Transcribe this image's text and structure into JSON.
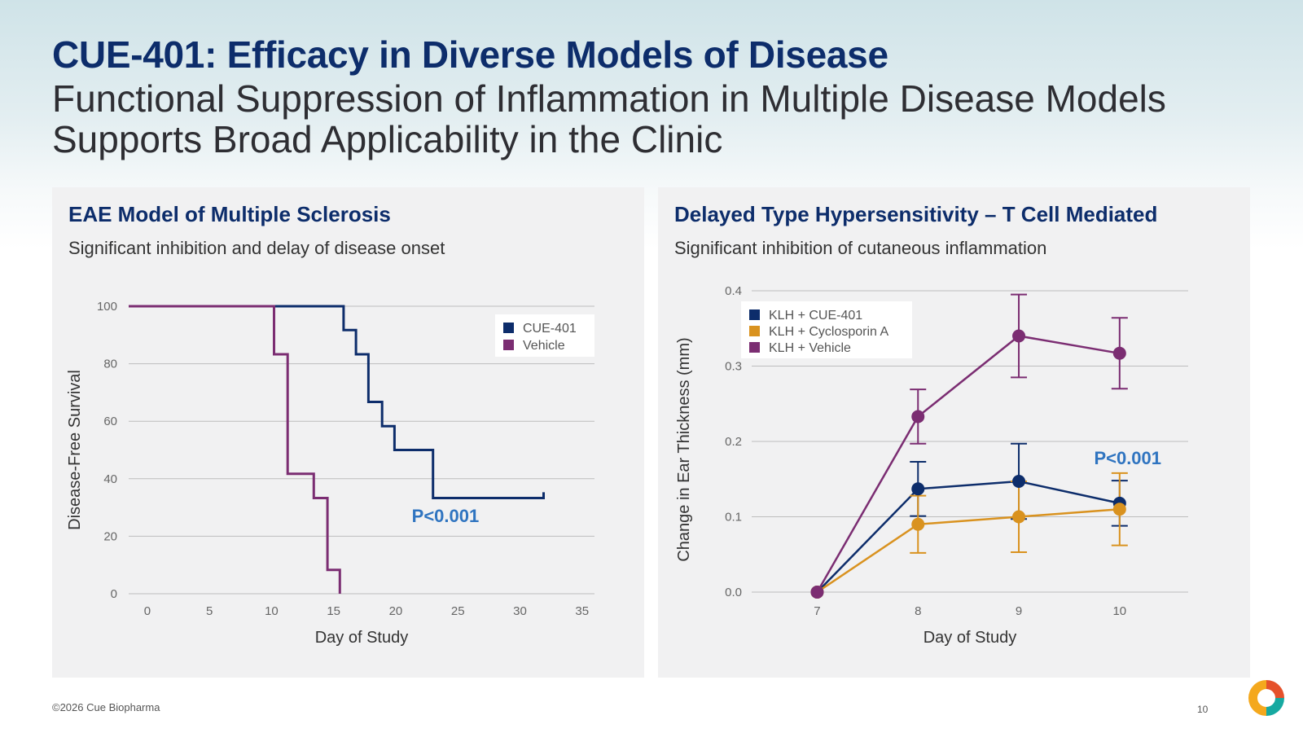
{
  "header": {
    "title": "CUE-401: Efficacy in Diverse Models of Disease",
    "subtitle": "Functional Suppression of Inflammation in Multiple Disease Models Supports Broad Applicability in the Clinic"
  },
  "footer": {
    "copyright": "©2026 Cue Biopharma",
    "page_number": "10"
  },
  "colors": {
    "title": "#0d2d6b",
    "cue401": "#0d2d6b",
    "vehicle": "#7b2d72",
    "cyclosporin": "#d9921f",
    "pvalue": "#2f74c0"
  },
  "panels": [
    {
      "title": "EAE Model of Multiple Sclerosis",
      "subtitle": "Significant inhibition and delay of disease onset"
    },
    {
      "title": "Delayed Type Hypersensitivity – T Cell Mediated",
      "subtitle": "Significant inhibition of cutaneous inflammation"
    }
  ],
  "chart_data": [
    {
      "type": "line",
      "step": true,
      "title": "EAE Model of Multiple Sclerosis",
      "xlabel": "Day of Study",
      "ylabel": "Disease-Free Survival",
      "xlim": [
        -1.5,
        36
      ],
      "ylim": [
        0,
        100
      ],
      "xticks": [
        0,
        5,
        10,
        15,
        20,
        25,
        30,
        35
      ],
      "xtick_labels": [
        "0",
        "5",
        "10",
        "15",
        "20",
        "25",
        "30",
        "35"
      ],
      "yticks": [
        0,
        20,
        40,
        60,
        80,
        100
      ],
      "ytick_labels": [
        "0",
        "20",
        "40",
        "60",
        "80",
        "100"
      ],
      "grid": true,
      "legend": "top-right",
      "annotation": "P<0.001",
      "annotation_position": [
        24,
        25
      ],
      "series": [
        {
          "name": "CUE-401",
          "color": "#0d2d6b",
          "points": [
            [
              -1.5,
              100
            ],
            [
              15.8,
              100
            ],
            [
              15.8,
              91.7
            ],
            [
              16.8,
              91.7
            ],
            [
              16.8,
              83.3
            ],
            [
              17.8,
              83.3
            ],
            [
              17.8,
              66.7
            ],
            [
              18.9,
              66.7
            ],
            [
              18.9,
              58.3
            ],
            [
              19.9,
              58.3
            ],
            [
              19.9,
              50
            ],
            [
              23,
              50
            ],
            [
              23,
              33.3
            ],
            [
              31.9,
              33.3
            ],
            [
              31.9,
              35.3
            ]
          ]
        },
        {
          "name": "Vehicle",
          "color": "#7b2d72",
          "points": [
            [
              -1.5,
              100
            ],
            [
              10.2,
              100
            ],
            [
              10.2,
              83.3
            ],
            [
              11.3,
              83.3
            ],
            [
              11.3,
              41.7
            ],
            [
              13.4,
              41.7
            ],
            [
              13.4,
              33.3
            ],
            [
              14.5,
              33.3
            ],
            [
              14.5,
              8.3
            ],
            [
              15.5,
              8.3
            ],
            [
              15.5,
              0
            ]
          ]
        }
      ]
    },
    {
      "type": "line",
      "title": "Delayed Type Hypersensitivity – T Cell Mediated",
      "xlabel": "Day of Study",
      "ylabel": "Change in Ear Thickness (mm)",
      "xlim": [
        6.35,
        10.68
      ],
      "ylim": [
        0,
        0.4
      ],
      "x": [
        7,
        8,
        9,
        10
      ],
      "xtick_labels": [
        "7",
        "8",
        "9",
        "10"
      ],
      "yticks": [
        0,
        0.1,
        0.2,
        0.3,
        0.4
      ],
      "ytick_labels": [
        "0.0",
        "0.1",
        "0.2",
        "0.3",
        "0.4"
      ],
      "grid": true,
      "legend": "top-left",
      "annotation": "P<0.001",
      "annotation_position": [
        10.08,
        0.17
      ],
      "series": [
        {
          "name": "KLH + CUE-401",
          "color": "#0d2d6b",
          "values": [
            0,
            0.137,
            0.147,
            0.118
          ],
          "errors": [
            0,
            0.036,
            0.05,
            0.03
          ]
        },
        {
          "name": "KLH + Cyclosporin A",
          "color": "#d9921f",
          "values": [
            0,
            0.09,
            0.1,
            0.11
          ],
          "errors": [
            0,
            0.038,
            0.047,
            0.048
          ]
        },
        {
          "name": "KLH + Vehicle",
          "color": "#7b2d72",
          "values": [
            0,
            0.233,
            0.34,
            0.317
          ],
          "errors": [
            0,
            0.036,
            0.055,
            0.047
          ]
        }
      ]
    }
  ]
}
